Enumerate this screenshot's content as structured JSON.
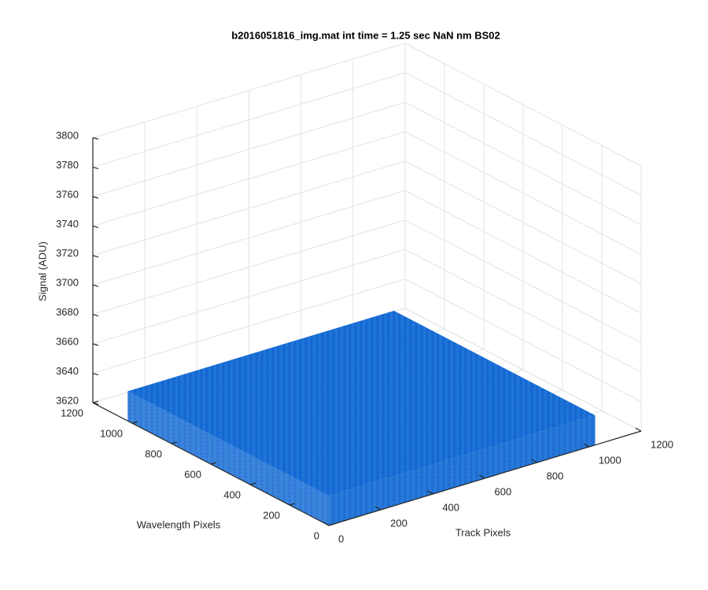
{
  "chart_data": {
    "type": "surface",
    "title": "b2016051816_img.mat int time = 1.25 sec  NaN nm BS02",
    "xlabel": "Track Pixels",
    "ylabel": "Wavelength Pixels",
    "zlabel": "Signal (ADU)",
    "x": [
      1,
      1024
    ],
    "y": [
      1,
      1024
    ],
    "z": [
      [
        3640,
        3640
      ],
      [
        3640,
        3640
      ]
    ],
    "color": "#1769d4",
    "xlim": [
      0,
      1200
    ],
    "xticks": [
      0,
      200,
      400,
      600,
      800,
      1000,
      1200
    ],
    "ylim": [
      0,
      1200
    ],
    "yticks": [
      0,
      200,
      400,
      600,
      800,
      1000,
      1200
    ],
    "zlim": [
      3620,
      3800
    ],
    "zticks": [
      3620,
      3640,
      3660,
      3680,
      3700,
      3720,
      3740,
      3760,
      3780,
      3800
    ],
    "grid": true
  }
}
